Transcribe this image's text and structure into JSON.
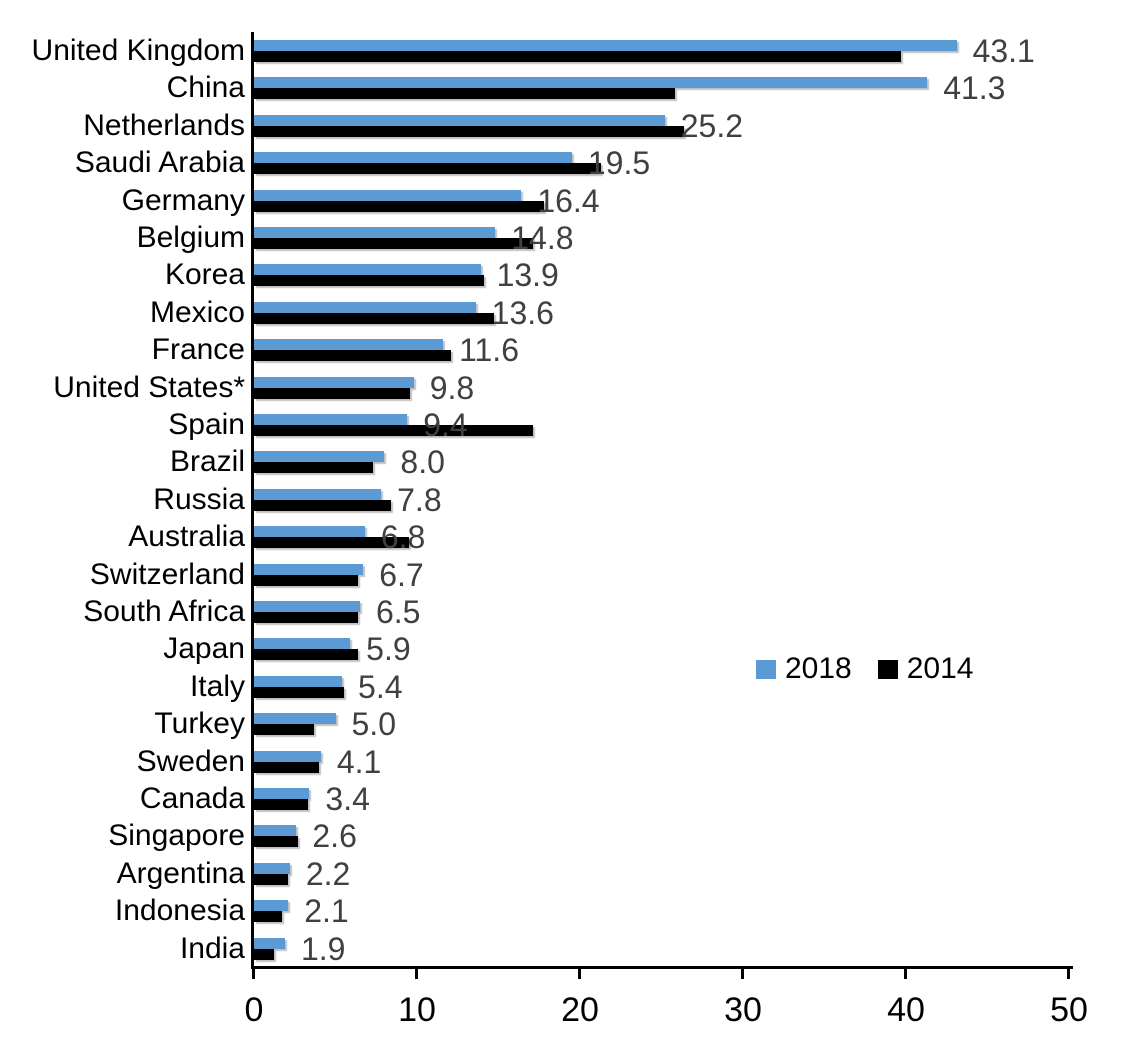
{
  "chart_data": {
    "type": "bar",
    "orientation": "horizontal",
    "title": "",
    "xlabel": "",
    "ylabel": "",
    "xlim": [
      0,
      50
    ],
    "xticks": [
      0,
      10,
      20,
      30,
      40,
      50
    ],
    "grid": false,
    "legend_position": "middle-right",
    "data_labels_on_series": "2018",
    "categories": [
      "United Kingdom",
      "China",
      "Netherlands",
      "Saudi Arabia",
      "Germany",
      "Belgium",
      "Korea",
      "Mexico",
      "France",
      "United States*",
      "Spain",
      "Brazil",
      "Russia",
      "Australia",
      "Switzerland",
      "South Africa",
      "Japan",
      "Italy",
      "Turkey",
      "Sweden",
      "Canada",
      "Singapore",
      "Argentina",
      "Indonesia",
      "India"
    ],
    "series": [
      {
        "name": "2018",
        "color": "#5B9BD5",
        "values": [
          43.1,
          41.3,
          25.2,
          19.5,
          16.4,
          14.8,
          13.9,
          13.6,
          11.6,
          9.8,
          9.4,
          8.0,
          7.8,
          6.8,
          6.7,
          6.5,
          5.9,
          5.4,
          5.0,
          4.1,
          3.4,
          2.6,
          2.2,
          2.1,
          1.9
        ],
        "data_labels": [
          "43.1",
          "41.3",
          "25.2",
          "19.5",
          "16.4",
          "14.8",
          "13.9",
          "13.6",
          "11.6",
          "9.8",
          "9.4",
          "8.0",
          "7.8",
          "6.8",
          "6.7",
          "6.5",
          "5.9",
          "5.4",
          "5.0",
          "4.1",
          "3.4",
          "2.6",
          "2.2",
          "2.1",
          "1.9"
        ]
      },
      {
        "name": "2014",
        "color": "#000000",
        "values": [
          39.7,
          25.8,
          26.4,
          21.3,
          17.8,
          17.1,
          14.1,
          14.7,
          12.1,
          9.6,
          17.1,
          7.3,
          8.4,
          9.5,
          6.4,
          6.4,
          6.4,
          5.5,
          3.7,
          4.0,
          3.3,
          2.7,
          2.1,
          1.7,
          1.2
        ],
        "data_labels": []
      }
    ]
  },
  "legend": {
    "items": [
      {
        "label": "2018",
        "color": "#5B9BD5"
      },
      {
        "label": "2014",
        "color": "#000000"
      }
    ]
  },
  "colors": {
    "bar_2018": "#5B9BD5",
    "bar_2014": "#000000",
    "value_label": "#404040",
    "axis": "#000000",
    "background": "#ffffff"
  }
}
